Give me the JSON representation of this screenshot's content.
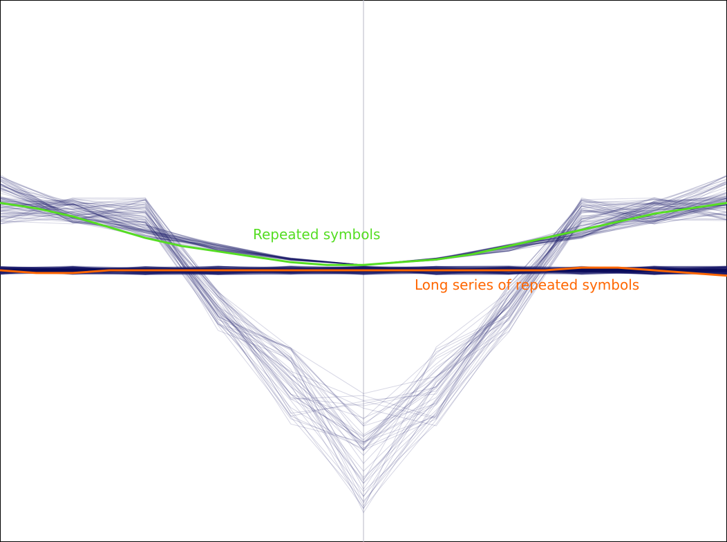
{
  "chart_data": {
    "type": "line",
    "title": "",
    "xlabel": "",
    "ylabel": "",
    "x_range": [
      -1,
      1
    ],
    "y_range": [
      -1,
      1
    ],
    "grid": false,
    "center_rule": true,
    "background_band": {
      "description": "many faint overlapping traces",
      "color": "#1b1b6b",
      "count": 140,
      "shapes": [
        "shallow-dip",
        "deep-dip",
        "flat"
      ]
    },
    "series": [
      {
        "label": "Repeated symbols",
        "color": "#55dd22",
        "x": [
          -1.0,
          -0.9,
          -0.8,
          -0.7,
          -0.6,
          -0.5,
          -0.4,
          -0.3,
          -0.2,
          -0.1,
          0.0,
          0.1,
          0.2,
          0.3,
          0.4,
          0.5,
          0.6,
          0.7,
          0.8,
          0.9,
          1.0
        ],
        "y": [
          0.25,
          0.23,
          0.2,
          0.16,
          0.12,
          0.09,
          0.07,
          0.05,
          0.03,
          0.02,
          0.02,
          0.03,
          0.04,
          0.06,
          0.09,
          0.12,
          0.15,
          0.18,
          0.21,
          0.23,
          0.25
        ]
      },
      {
        "label": "Long series of repeated symbols",
        "color": "#ff6600",
        "x": [
          -1.0,
          -0.9,
          -0.8,
          -0.7,
          -0.6,
          -0.5,
          -0.4,
          -0.3,
          -0.2,
          -0.1,
          0.0,
          0.1,
          0.2,
          0.3,
          0.4,
          0.5,
          0.6,
          0.7,
          0.8,
          0.9,
          1.0
        ],
        "y": [
          -0.0,
          -0.01,
          -0.01,
          -0.0,
          -0.0,
          -0.0,
          0.0,
          0.0,
          0.0,
          0.0,
          0.0,
          0.0,
          0.0,
          0.0,
          0.0,
          0.0,
          0.01,
          0.01,
          0.0,
          -0.01,
          -0.02
        ]
      }
    ]
  }
}
